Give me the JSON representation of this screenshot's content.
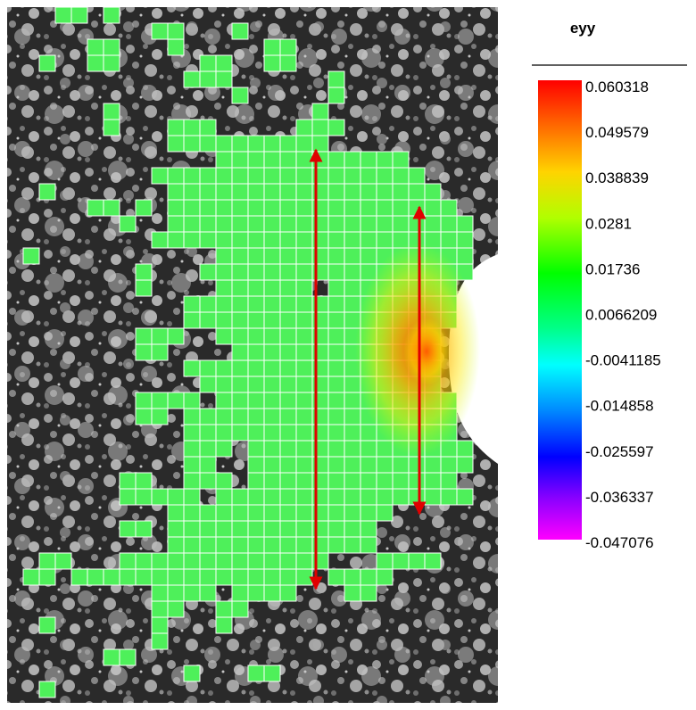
{
  "chart_data": {
    "type": "heatmap",
    "title": "eyy",
    "colorbar": {
      "ticks": [
        "0.060318",
        "0.049579",
        "0.038839",
        "0.0281",
        "0.01736",
        "0.0066209",
        "-0.0041185",
        "-0.014858",
        "-0.025597",
        "-0.036337",
        "-0.047076"
      ],
      "max": 0.060318,
      "min": -0.047076
    },
    "field_description_values": {
      "typical": 0.017,
      "peak": 0.045
    },
    "annotations": [
      "red double-headed arrow (left)",
      "red double-headed arrow (right)"
    ]
  }
}
